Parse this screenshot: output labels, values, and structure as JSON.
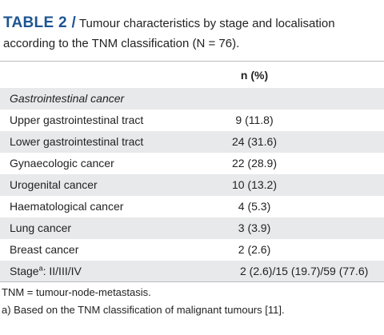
{
  "header": {
    "label": "TABLE 2 /",
    "title": "Tumour characteristics by stage and localisation according to the TNM classification (N = 76)."
  },
  "table": {
    "column_header": "n (%)",
    "rows": [
      [
        "Gastrointestinal cancer",
        ""
      ],
      [
        "Upper gastrointestinal tract",
        "9 (11.8)"
      ],
      [
        "Lower gastrointestinal tract",
        "24 (31.6)"
      ],
      [
        "Gynaecologic cancer",
        "22 (28.9)"
      ],
      [
        "Urogenital cancer",
        "10 (13.2)"
      ],
      [
        "Haematological cancer",
        "4 (5.3)"
      ],
      [
        "Lung cancer",
        "3 (3.9)"
      ],
      [
        "Breast cancer",
        "2 (2.6)"
      ],
      [
        {
          "text": "Stage",
          "sup": "a",
          "rest": ": II/III/IV"
        },
        "2 (2.6)/15 (19.7)/59 (77.6)"
      ]
    ]
  },
  "footnotes": [
    "TNM = tumour-node-metastasis.",
    "a) Based on the TNM classification of malignant tumours [11]."
  ]
}
